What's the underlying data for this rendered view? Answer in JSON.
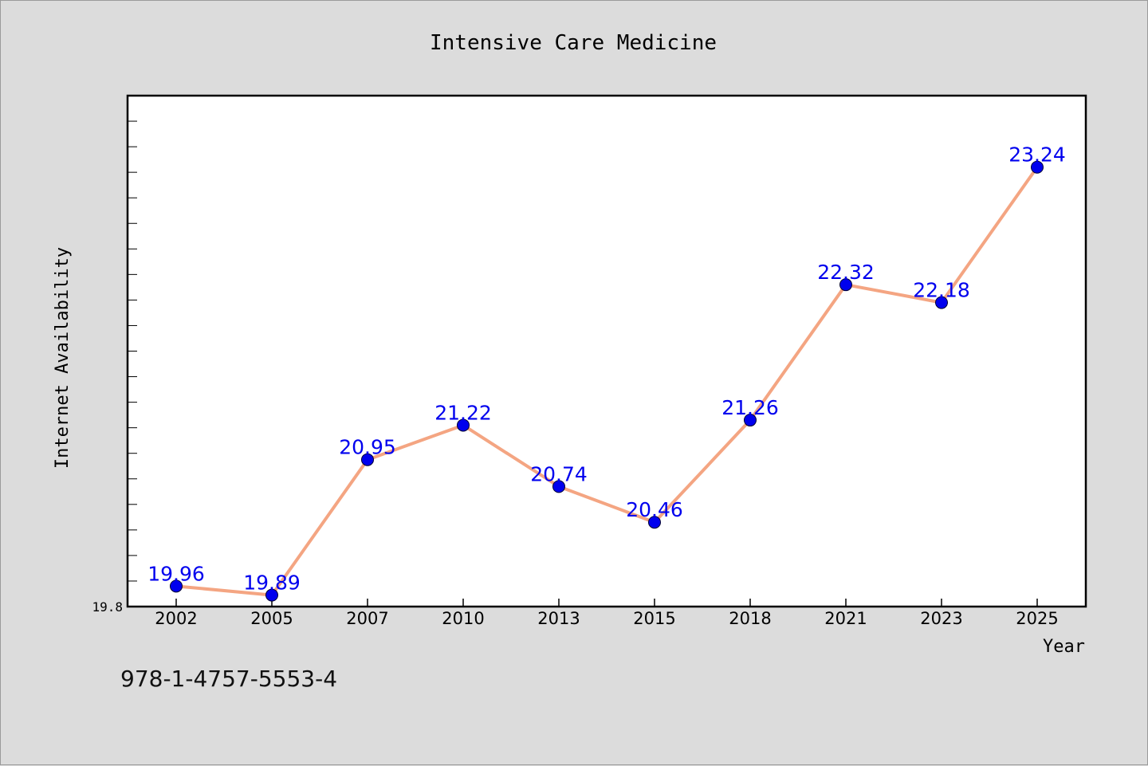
{
  "chart_data": {
    "type": "line",
    "title": "Intensive Care Medicine",
    "xlabel": "Year",
    "ylabel": "Internet Availability",
    "categories": [
      "2002",
      "2005",
      "2007",
      "2010",
      "2013",
      "2015",
      "2018",
      "2021",
      "2023",
      "2025"
    ],
    "series": [
      {
        "values": [
          19.96,
          19.89,
          20.95,
          21.22,
          20.74,
          20.46,
          21.26,
          22.32,
          22.18,
          23.24
        ]
      }
    ],
    "y_tick_labels": [
      "19.8"
    ],
    "ylim": [
      19.8,
      23.8
    ],
    "grid": false,
    "legend": "none",
    "colors": {
      "line": "#f4a582",
      "marker": "#0000ee",
      "data_label": "#0000ee",
      "plot_background": "#ffffff",
      "page_background": "#dcdcdc"
    }
  },
  "footer": {
    "isbn": "978-1-4757-5553-4"
  }
}
